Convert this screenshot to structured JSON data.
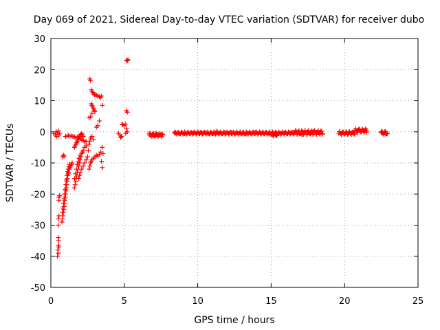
{
  "chart_data": {
    "type": "scatter",
    "title": "Day 069 of 2021, Sidereal Day-to-day VTEC variation (SDTVAR) for receiver dubo",
    "xlabel": "GPS time / hours",
    "ylabel": "SDTVAR / TECUs",
    "xlim": [
      0,
      25
    ],
    "ylim": [
      -50,
      30
    ],
    "xticks": [
      0,
      5,
      10,
      15,
      20,
      25
    ],
    "yticks": [
      -50,
      -40,
      -30,
      -20,
      -10,
      0,
      10,
      20,
      30
    ],
    "xtick_labels": [
      "0",
      "5",
      "10",
      "15",
      "20",
      "25"
    ],
    "ytick_labels": [
      "-50",
      "-40",
      "-30",
      "-20",
      "-10",
      "0",
      "10",
      "20",
      "30"
    ],
    "grid": true,
    "marker": "+",
    "color": "#ff0000",
    "series": [
      {
        "name": "dubo",
        "points": [
          [
            0.2,
            -0.5
          ],
          [
            0.3,
            -1
          ],
          [
            0.35,
            0
          ],
          [
            0.4,
            -1.5
          ],
          [
            0.45,
            -0.3
          ],
          [
            0.5,
            0.3
          ],
          [
            0.55,
            -1
          ],
          [
            0.6,
            -0.5
          ],
          [
            0.45,
            -40
          ],
          [
            0.47,
            -38
          ],
          [
            0.5,
            -36.5
          ],
          [
            0.52,
            -35
          ],
          [
            0.5,
            -34
          ],
          [
            0.55,
            -37
          ],
          [
            0.5,
            -39
          ],
          [
            0.5,
            -28
          ],
          [
            0.55,
            -27
          ],
          [
            0.5,
            -30
          ],
          [
            0.55,
            -21
          ],
          [
            0.6,
            -20.5
          ],
          [
            0.55,
            -22
          ],
          [
            0.75,
            -29
          ],
          [
            0.8,
            -28
          ],
          [
            0.82,
            -27
          ],
          [
            0.85,
            -26
          ],
          [
            0.88,
            -25
          ],
          [
            0.9,
            -24
          ],
          [
            0.92,
            -23
          ],
          [
            0.95,
            -22
          ],
          [
            0.98,
            -21
          ],
          [
            1.0,
            -20
          ],
          [
            1.03,
            -19
          ],
          [
            1.05,
            -18
          ],
          [
            1.08,
            -17
          ],
          [
            1.1,
            -16
          ],
          [
            1.12,
            -15
          ],
          [
            1.15,
            -14
          ],
          [
            1.18,
            -13.5
          ],
          [
            1.2,
            -13
          ],
          [
            1.25,
            -12
          ],
          [
            1.3,
            -11.5
          ],
          [
            1.35,
            -11
          ],
          [
            1.4,
            -10.5
          ],
          [
            1.45,
            -10
          ],
          [
            0.78,
            -26
          ],
          [
            0.82,
            -24.5
          ],
          [
            0.86,
            -23
          ],
          [
            0.9,
            -21.5
          ],
          [
            0.94,
            -20
          ],
          [
            0.98,
            -18.5
          ],
          [
            1.02,
            -17
          ],
          [
            1.06,
            -15.5
          ],
          [
            1.1,
            -14
          ],
          [
            1.14,
            -12.8
          ],
          [
            1.18,
            -12
          ],
          [
            1.22,
            -11.2
          ],
          [
            1.26,
            -10.5
          ],
          [
            0.8,
            -8
          ],
          [
            0.85,
            -7.5
          ],
          [
            0.9,
            -7.8
          ],
          [
            1.0,
            -1.5
          ],
          [
            1.1,
            -1.3
          ],
          [
            1.2,
            -1.2
          ],
          [
            1.3,
            -1.4
          ],
          [
            1.4,
            -1.3
          ],
          [
            1.5,
            -1.5
          ],
          [
            1.6,
            -1.6
          ],
          [
            1.6,
            -18
          ],
          [
            1.65,
            -17
          ],
          [
            1.7,
            -16
          ],
          [
            1.75,
            -14.5
          ],
          [
            1.8,
            -13
          ],
          [
            1.85,
            -12
          ],
          [
            1.9,
            -11
          ],
          [
            1.95,
            -10
          ],
          [
            2.0,
            -9
          ],
          [
            2.05,
            -8
          ],
          [
            2.1,
            -7
          ],
          [
            2.15,
            -6.5
          ],
          [
            2.2,
            -6
          ],
          [
            2.3,
            -5
          ],
          [
            2.4,
            -4.5
          ],
          [
            1.62,
            -15
          ],
          [
            1.68,
            -13.5
          ],
          [
            1.74,
            -12
          ],
          [
            1.8,
            -10.5
          ],
          [
            1.86,
            -9.5
          ],
          [
            1.92,
            -8.5
          ],
          [
            1.98,
            -7.5
          ],
          [
            1.6,
            -5
          ],
          [
            1.65,
            -4.5
          ],
          [
            1.7,
            -4
          ],
          [
            1.75,
            -3.5
          ],
          [
            1.8,
            -3
          ],
          [
            1.85,
            -2.5
          ],
          [
            1.9,
            -2
          ],
          [
            1.95,
            -1.5
          ],
          [
            2.0,
            -1
          ],
          [
            2.05,
            -0.8
          ],
          [
            2.1,
            -0.5
          ],
          [
            2.15,
            -1
          ],
          [
            2.2,
            -1.5
          ],
          [
            1.7,
            -2
          ],
          [
            1.8,
            -1.8
          ],
          [
            1.9,
            -1.6
          ],
          [
            2.0,
            -2.2
          ],
          [
            2.1,
            -2.4
          ],
          [
            2.2,
            -2.8
          ],
          [
            2.3,
            -3.2
          ],
          [
            2.4,
            -3
          ],
          [
            1.9,
            -15
          ],
          [
            1.95,
            -14
          ],
          [
            2.0,
            -13
          ],
          [
            2.1,
            -12
          ],
          [
            2.2,
            -11
          ],
          [
            2.3,
            -10
          ],
          [
            2.4,
            -9
          ],
          [
            2.5,
            -8
          ],
          [
            2.6,
            -12
          ],
          [
            2.65,
            -11
          ],
          [
            2.7,
            -10
          ],
          [
            2.75,
            -9.5
          ],
          [
            2.8,
            -9
          ],
          [
            2.9,
            -8.5
          ],
          [
            3.0,
            -8
          ],
          [
            3.1,
            -7.5
          ],
          [
            3.2,
            -7.8
          ],
          [
            3.3,
            -7.2
          ],
          [
            3.4,
            -6.5
          ],
          [
            3.45,
            -9.5
          ],
          [
            3.5,
            -5
          ],
          [
            3.5,
            -11.5
          ],
          [
            3.55,
            -7
          ],
          [
            2.55,
            -6
          ],
          [
            2.6,
            -4
          ],
          [
            2.65,
            -3
          ],
          [
            2.7,
            -2
          ],
          [
            2.8,
            -1.5
          ],
          [
            2.9,
            -2.5
          ],
          [
            2.6,
            4.5
          ],
          [
            2.7,
            4.8
          ],
          [
            2.65,
            17
          ],
          [
            2.7,
            16.5
          ],
          [
            2.75,
            13.5
          ],
          [
            2.8,
            13
          ],
          [
            2.85,
            12.5
          ],
          [
            2.9,
            12.5
          ],
          [
            2.95,
            12
          ],
          [
            3.0,
            12
          ],
          [
            3.1,
            11.8
          ],
          [
            3.2,
            11.5
          ],
          [
            3.3,
            11.3
          ],
          [
            3.4,
            11
          ],
          [
            3.45,
            11.5
          ],
          [
            2.75,
            9
          ],
          [
            2.8,
            8.5
          ],
          [
            2.85,
            8
          ],
          [
            2.9,
            7.5
          ],
          [
            2.95,
            7
          ],
          [
            3.0,
            6.5
          ],
          [
            2.8,
            6
          ],
          [
            3.1,
            1.5
          ],
          [
            3.2,
            2
          ],
          [
            3.3,
            3.5
          ],
          [
            3.5,
            8.5
          ],
          [
            4.6,
            -0.5
          ],
          [
            4.7,
            -1
          ],
          [
            4.75,
            -1.8
          ],
          [
            4.8,
            -1.5
          ],
          [
            4.85,
            2.5
          ],
          [
            4.9,
            2.3
          ],
          [
            5.0,
            2
          ],
          [
            5.1,
            2.5
          ],
          [
            5.15,
            1
          ],
          [
            5.2,
            0
          ],
          [
            5.1,
            -0.5
          ],
          [
            5.15,
            6.8
          ],
          [
            5.2,
            6.3
          ],
          [
            5.15,
            23
          ],
          [
            5.2,
            22.8
          ],
          [
            5.25,
            23.2
          ],
          [
            6.7,
            -0.5
          ],
          [
            6.8,
            -1
          ],
          [
            6.9,
            -0.8
          ],
          [
            7.0,
            -1.2
          ],
          [
            7.1,
            -0.6
          ],
          [
            7.2,
            -1
          ],
          [
            7.3,
            -0.9
          ],
          [
            7.4,
            -1.1
          ],
          [
            7.5,
            -0.7
          ],
          [
            7.6,
            -1
          ],
          [
            8.5,
            -0.3
          ],
          [
            8.7,
            -0.5
          ],
          [
            8.9,
            -0.2
          ],
          [
            9.1,
            -0.6
          ],
          [
            9.3,
            -0.4
          ],
          [
            9.5,
            -0.5
          ],
          [
            9.7,
            -0.3
          ],
          [
            9.9,
            -0.6
          ],
          [
            10.1,
            -0.4
          ],
          [
            10.3,
            -0.5
          ],
          [
            10.5,
            -0.2
          ],
          [
            10.7,
            -0.6
          ],
          [
            10.9,
            -0.3
          ],
          [
            11.1,
            -0.5
          ],
          [
            11.3,
            0.2
          ],
          [
            11.5,
            -0.4
          ],
          [
            11.7,
            -0.6
          ],
          [
            11.9,
            -0.3
          ],
          [
            12.1,
            -0.5
          ],
          [
            12.3,
            -0.2
          ],
          [
            12.5,
            -0.6
          ],
          [
            12.7,
            -0.4
          ],
          [
            12.9,
            -0.3
          ],
          [
            13.1,
            -0.5
          ],
          [
            13.3,
            -0.7
          ],
          [
            13.5,
            -0.3
          ],
          [
            13.7,
            -0.5
          ],
          [
            13.9,
            -0.2
          ],
          [
            14.1,
            -0.6
          ],
          [
            14.3,
            -0.4
          ],
          [
            14.5,
            -0.5
          ],
          [
            14.7,
            -0.3
          ],
          [
            14.9,
            -0.7
          ],
          [
            15.1,
            -0.8
          ],
          [
            15.3,
            -1.0
          ],
          [
            15.5,
            -0.6
          ],
          [
            15.7,
            -0.5
          ],
          [
            15.9,
            -0.3
          ],
          [
            16.1,
            -0.6
          ],
          [
            16.3,
            -0.4
          ],
          [
            16.5,
            -0.2
          ],
          [
            16.7,
            0.1
          ],
          [
            16.9,
            -0.5
          ],
          [
            17.1,
            -1.0
          ],
          [
            17.3,
            -0.2
          ],
          [
            17.5,
            -0.3
          ],
          [
            17.7,
            -0.5
          ],
          [
            17.9,
            0.2
          ],
          [
            18.1,
            -0.3
          ],
          [
            18.3,
            -0.4
          ],
          [
            18.5,
            -0.6
          ],
          [
            19.7,
            -0.5
          ],
          [
            19.9,
            -0.3
          ],
          [
            20.1,
            -0.4
          ],
          [
            20.3,
            -0.2
          ],
          [
            20.5,
            -0.3
          ],
          [
            20.7,
            0.2
          ],
          [
            20.9,
            0.5
          ],
          [
            21.0,
            0.8
          ],
          [
            21.1,
            0.3
          ],
          [
            21.3,
            0.2
          ],
          [
            21.4,
            0.6
          ],
          [
            21.5,
            -0.1
          ],
          [
            22.5,
            0
          ],
          [
            22.6,
            -0.5
          ],
          [
            22.7,
            -0.3
          ],
          [
            22.8,
            -0.6
          ],
          [
            22.9,
            -0.4
          ]
        ],
        "segments": [
          [
            6.7,
            7.6,
            -1.0,
            0.9
          ],
          [
            8.4,
            16.6,
            -0.4,
            0.6
          ],
          [
            15.0,
            15.4,
            -0.9,
            0.8
          ],
          [
            16.6,
            18.5,
            -0.2,
            1.1
          ],
          [
            19.6,
            20.7,
            -0.4,
            0.8
          ],
          [
            20.7,
            21.5,
            0.4,
            1.0
          ],
          [
            22.5,
            22.9,
            -0.3,
            0.9
          ]
        ]
      }
    ]
  }
}
